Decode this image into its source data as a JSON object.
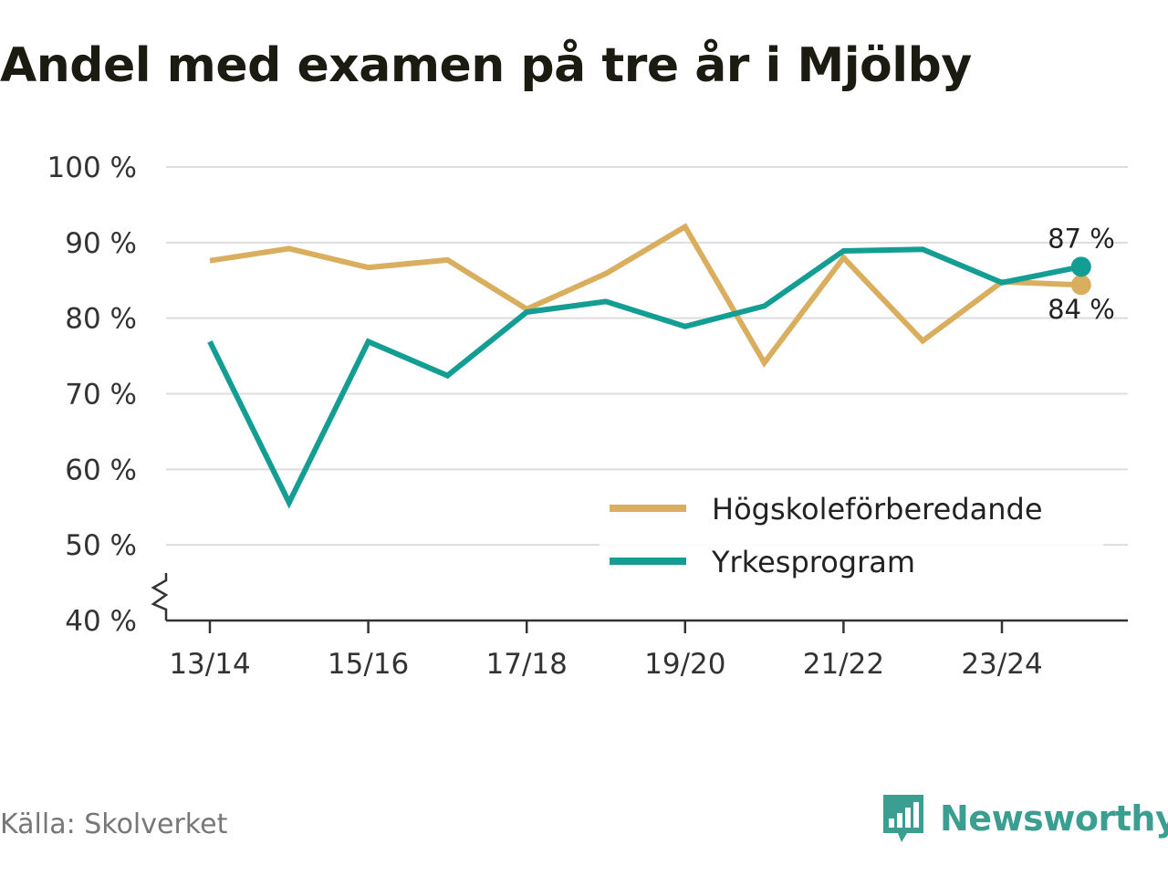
{
  "title": "Andel med examen på tre år i Mjölby",
  "source": "Källa: Skolverket",
  "brand": {
    "name": "Newsworthy",
    "icon": "newsworthy-logo-icon",
    "color": "#3a9e90"
  },
  "chart_data": {
    "type": "line",
    "title": "Andel med examen på tre år i Mjölby",
    "xlabel": "",
    "ylabel": "",
    "x": [
      "13/14",
      "14/15",
      "15/16",
      "16/17",
      "17/18",
      "18/19",
      "19/20",
      "20/21",
      "21/22",
      "22/23",
      "23/24",
      "24/25"
    ],
    "x_tick_labels": [
      "13/14",
      "15/16",
      "17/18",
      "19/20",
      "21/22",
      "23/24"
    ],
    "ylim": [
      40,
      100
    ],
    "y_ticks": [
      40,
      50,
      60,
      70,
      80,
      90,
      100
    ],
    "y_tick_labels": [
      "40 %",
      "50 %",
      "60 %",
      "70 %",
      "80 %",
      "90 %",
      "100 %"
    ],
    "y_axis_break": true,
    "grid": true,
    "legend_position": "bottom-right",
    "series": [
      {
        "name": "Högskoleförberedande",
        "color": "#d9ae5f",
        "values": [
          87.6,
          89.2,
          86.7,
          87.7,
          81.2,
          85.9,
          92.1,
          74.1,
          88.0,
          77.0,
          84.8,
          84.4
        ],
        "end_label": "84 %"
      },
      {
        "name": "Yrkesprogram",
        "color": "#149e93",
        "values": [
          76.9,
          55.6,
          76.9,
          72.4,
          80.8,
          82.2,
          78.9,
          81.6,
          88.9,
          89.1,
          84.7,
          86.8
        ],
        "end_label": "87 %"
      }
    ]
  }
}
